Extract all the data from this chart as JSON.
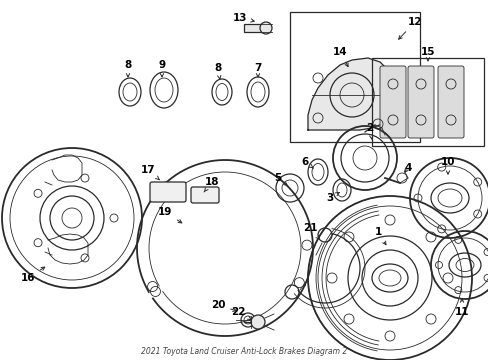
{
  "bg_color": "#ffffff",
  "line_color": "#2a2a2a",
  "fig_width": 4.89,
  "fig_height": 3.6,
  "dpi": 100,
  "title": "2021 Toyota Land Cruiser Anti-Lock Brakes Diagram 2"
}
